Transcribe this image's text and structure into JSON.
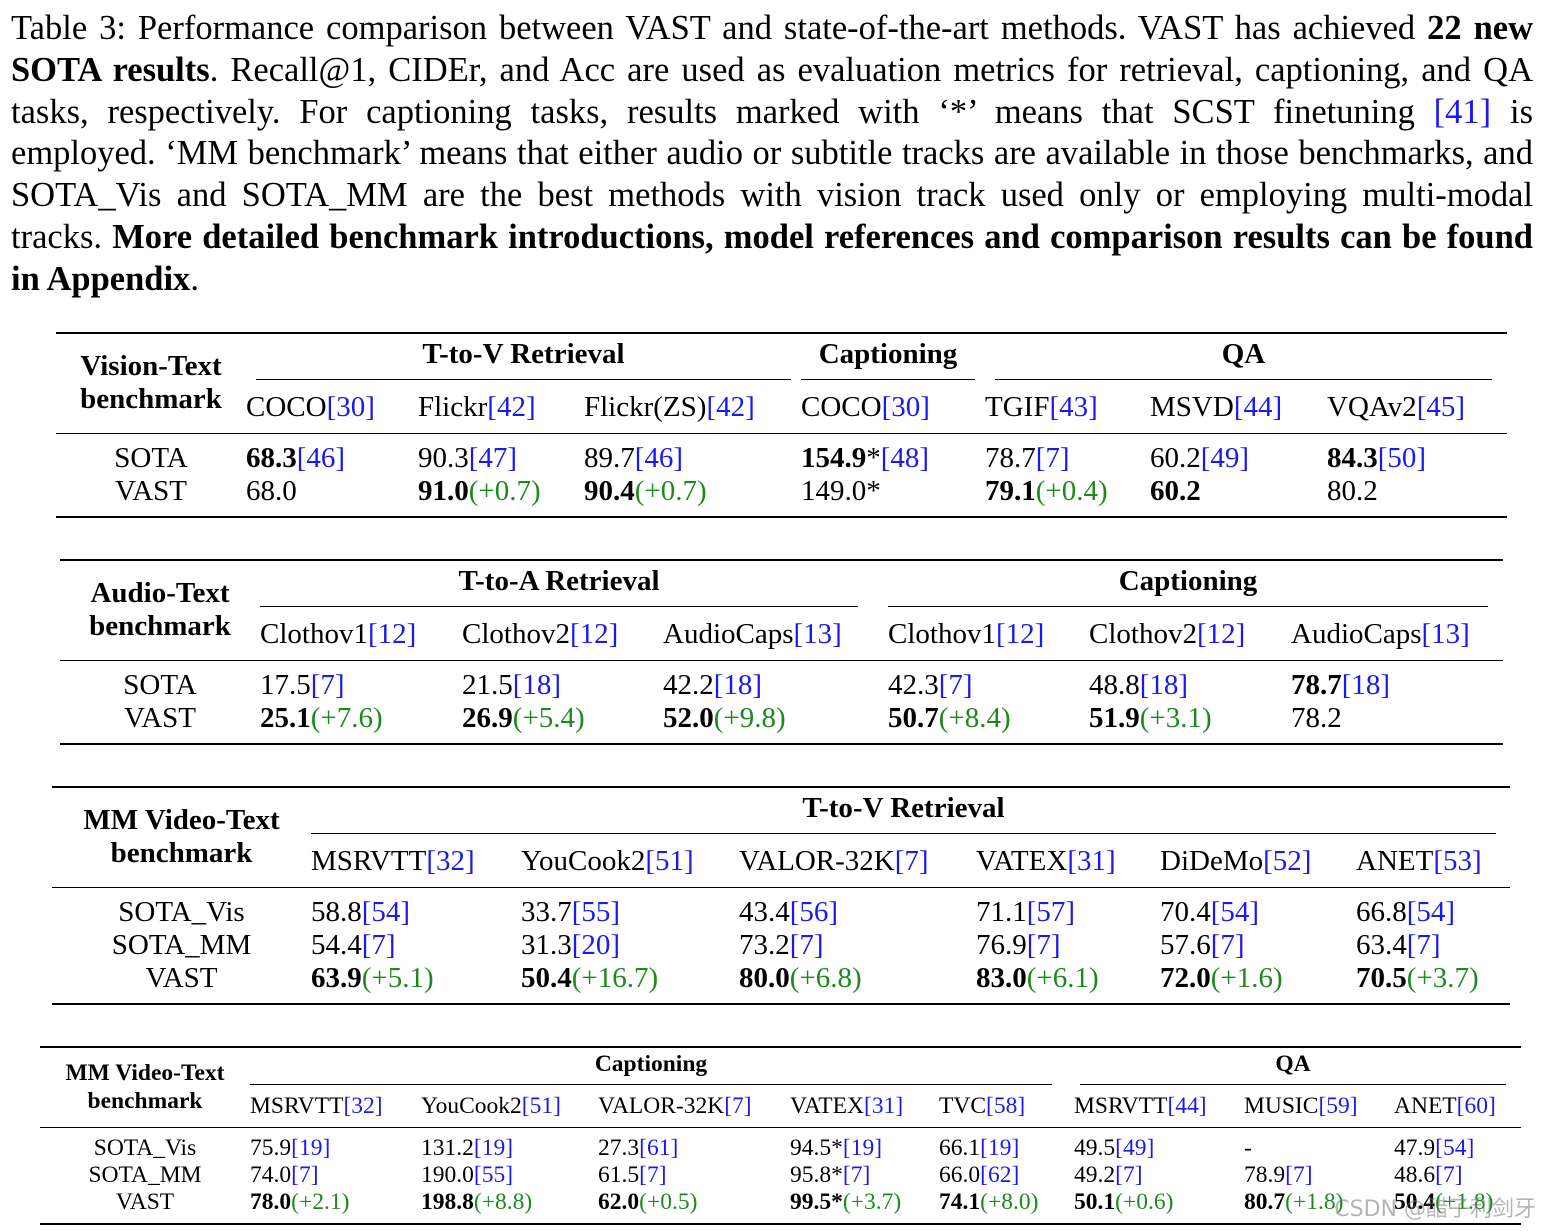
{
  "caption": {
    "label": "Table 3:",
    "t1": "Performance comparison between VAST and state-of-the-art methods. VAST has achieved",
    "bold1": "22 new SOTA results",
    "t2": ". Recall@1, CIDEr, and Acc are used as evaluation metrics for retrieval, captioning, and QA tasks, respectively. For captioning tasks, results marked with ‘*’ means that SCST finetuning",
    "ref": "[41]",
    "t3": "is employed. ‘MM benchmark’ means that either audio or subtitle tracks are available in those benchmarks, and SOTA_Vis and SOTA_MM are the best methods with vision track used only or employing multi-modal tracks.",
    "bold2": "More detailed benchmark introductions, model references and comparison results can be found in Appendix",
    "t4": "."
  },
  "t1": {
    "head": [
      "Vision-Text",
      "benchmark"
    ],
    "groups": [
      "T-to-V Retrieval",
      "Captioning",
      "QA"
    ],
    "cols": [
      {
        "name": "COCO",
        "ref": "[30]"
      },
      {
        "name": "Flickr",
        "ref": "[42]"
      },
      {
        "name": "Flickr(ZS)",
        "ref": "[42]"
      },
      {
        "name": "COCO",
        "ref": "[30]"
      },
      {
        "name": "TGIF",
        "ref": "[43]"
      },
      {
        "name": "MSVD",
        "ref": "[44]"
      },
      {
        "name": "VQAv2",
        "ref": "[45]"
      }
    ],
    "rows": [
      {
        "label": "SOTA",
        "cells": [
          {
            "v": "68.3",
            "b": true,
            "r": "[46]"
          },
          {
            "v": "90.3",
            "r": "[47]"
          },
          {
            "v": "89.7",
            "r": "[46]"
          },
          {
            "v": "154.9",
            "b": true,
            "s": "*",
            "r": "[48]"
          },
          {
            "v": "78.7",
            "r": "[7]"
          },
          {
            "v": "60.2",
            "r": "[49]"
          },
          {
            "v": "84.3",
            "b": true,
            "r": "[50]"
          }
        ]
      },
      {
        "label": "VAST",
        "cells": [
          {
            "v": "68.0"
          },
          {
            "v": "91.0",
            "b": true,
            "g": "(+0.7)"
          },
          {
            "v": "90.4",
            "b": true,
            "g": "(+0.7)"
          },
          {
            "v": "149.0*"
          },
          {
            "v": "79.1",
            "b": true,
            "g": "(+0.4)"
          },
          {
            "v": "60.2",
            "b": true
          },
          {
            "v": "80.2"
          }
        ]
      }
    ]
  },
  "t2": {
    "head": [
      "Audio-Text",
      "benchmark"
    ],
    "groups": [
      "T-to-A Retrieval",
      "Captioning"
    ],
    "cols": [
      {
        "name": "Clothov1",
        "ref": "[12]"
      },
      {
        "name": "Clothov2",
        "ref": "[12]"
      },
      {
        "name": "AudioCaps",
        "ref": "[13]"
      },
      {
        "name": "Clothov1",
        "ref": "[12]"
      },
      {
        "name": "Clothov2",
        "ref": "[12]"
      },
      {
        "name": "AudioCaps",
        "ref": "[13]"
      }
    ],
    "rows": [
      {
        "label": "SOTA",
        "cells": [
          {
            "v": "17.5",
            "r": "[7]"
          },
          {
            "v": "21.5",
            "r": "[18]"
          },
          {
            "v": "42.2",
            "r": "[18]"
          },
          {
            "v": "42.3",
            "r": "[7]"
          },
          {
            "v": "48.8",
            "r": "[18]"
          },
          {
            "v": "78.7",
            "b": true,
            "r": "[18]"
          }
        ]
      },
      {
        "label": "VAST",
        "cells": [
          {
            "v": "25.1",
            "b": true,
            "g": "(+7.6)"
          },
          {
            "v": "26.9",
            "b": true,
            "g": "(+5.4)"
          },
          {
            "v": "52.0",
            "b": true,
            "g": "(+9.8)"
          },
          {
            "v": "50.7",
            "b": true,
            "g": "(+8.4)"
          },
          {
            "v": "51.9",
            "b": true,
            "g": "(+3.1)"
          },
          {
            "v": "78.2"
          }
        ]
      }
    ]
  },
  "t3": {
    "head": [
      "MM Video-Text",
      "benchmark"
    ],
    "groups": [
      "T-to-V Retrieval"
    ],
    "cols": [
      {
        "name": "MSRVTT",
        "ref": "[32]"
      },
      {
        "name": "YouCook2",
        "ref": "[51]"
      },
      {
        "name": "VALOR-32K",
        "ref": "[7]"
      },
      {
        "name": "VATEX",
        "ref": "[31]"
      },
      {
        "name": "DiDeMo",
        "ref": "[52]"
      },
      {
        "name": "ANET",
        "ref": "[53]"
      }
    ],
    "rows": [
      {
        "label": "SOTA_Vis",
        "cells": [
          {
            "v": "58.8",
            "r": "[54]"
          },
          {
            "v": "33.7",
            "r": "[55]"
          },
          {
            "v": "43.4",
            "r": "[56]"
          },
          {
            "v": "71.1",
            "r": "[57]"
          },
          {
            "v": "70.4",
            "r": "[54]"
          },
          {
            "v": "66.8",
            "r": "[54]"
          }
        ]
      },
      {
        "label": "SOTA_MM",
        "cells": [
          {
            "v": "54.4",
            "r": "[7]"
          },
          {
            "v": "31.3",
            "r": "[20]"
          },
          {
            "v": "73.2",
            "r": "[7]"
          },
          {
            "v": "76.9",
            "r": "[7]"
          },
          {
            "v": "57.6",
            "r": "[7]"
          },
          {
            "v": "63.4",
            "r": "[7]"
          }
        ]
      },
      {
        "label": "VAST",
        "cells": [
          {
            "v": "63.9",
            "b": true,
            "g": "(+5.1)"
          },
          {
            "v": "50.4",
            "b": true,
            "g": "(+16.7)"
          },
          {
            "v": "80.0",
            "b": true,
            "g": "(+6.8)"
          },
          {
            "v": "83.0",
            "b": true,
            "g": "(+6.1)"
          },
          {
            "v": "72.0",
            "b": true,
            "g": "(+1.6)"
          },
          {
            "v": "70.5",
            "b": true,
            "g": "(+3.7)"
          }
        ]
      }
    ]
  },
  "t4": {
    "head": [
      "MM Video-Text",
      "benchmark"
    ],
    "groups": [
      "Captioning",
      "QA"
    ],
    "cols": [
      {
        "name": "MSRVTT",
        "ref": "[32]"
      },
      {
        "name": "YouCook2",
        "ref": "[51]"
      },
      {
        "name": "VALOR-32K",
        "ref": "[7]"
      },
      {
        "name": "VATEX",
        "ref": "[31]"
      },
      {
        "name": "TVC",
        "ref": "[58]"
      },
      {
        "name": "MSRVTT",
        "ref": "[44]"
      },
      {
        "name": "MUSIC",
        "ref": "[59]"
      },
      {
        "name": "ANET",
        "ref": "[60]"
      }
    ],
    "rows": [
      {
        "label": "SOTA_Vis",
        "cells": [
          {
            "v": "75.9",
            "r": "[19]"
          },
          {
            "v": "131.2",
            "r": "[19]"
          },
          {
            "v": "27.3",
            "r": "[61]"
          },
          {
            "v": "94.5*",
            "r": "[19]"
          },
          {
            "v": "66.1",
            "r": "[19]"
          },
          {
            "v": "49.5",
            "r": "[49]"
          },
          {
            "v": "-"
          },
          {
            "v": "47.9",
            "r": "[54]"
          }
        ]
      },
      {
        "label": "SOTA_MM",
        "cells": [
          {
            "v": "74.0",
            "r": "[7]"
          },
          {
            "v": "190.0",
            "r": "[55]"
          },
          {
            "v": "61.5",
            "r": "[7]"
          },
          {
            "v": "95.8*",
            "r": "[7]"
          },
          {
            "v": "66.0",
            "r": "[62]"
          },
          {
            "v": "49.2",
            "r": "[7]"
          },
          {
            "v": "78.9",
            "r": "[7]"
          },
          {
            "v": "48.6",
            "r": "[7]"
          }
        ]
      },
      {
        "label": "VAST",
        "cells": [
          {
            "v": "78.0",
            "b": true,
            "g": "(+2.1)"
          },
          {
            "v": "198.8",
            "b": true,
            "g": "(+8.8)"
          },
          {
            "v": "62.0",
            "b": true,
            "g": "(+0.5)"
          },
          {
            "v": "99.5*",
            "b": true,
            "g": "(+3.7)"
          },
          {
            "v": "74.1",
            "b": true,
            "g": "(+8.0)"
          },
          {
            "v": "50.1",
            "b": true,
            "g": "(+0.6)"
          },
          {
            "v": "80.7",
            "b": true,
            "g": "(+1.8)"
          },
          {
            "v": "50.4",
            "b": true,
            "g": "(+1.8)"
          }
        ]
      }
    ]
  },
  "watermark": "CSDN @醋子利剑牙"
}
